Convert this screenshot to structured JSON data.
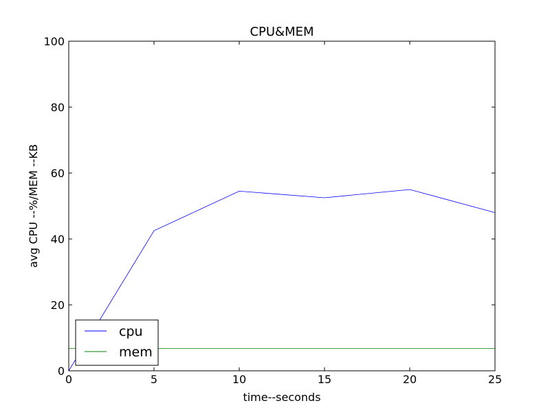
{
  "chart_data": {
    "type": "line",
    "title": "CPU&MEM",
    "xlabel": "time--seconds",
    "ylabel": "avg CPU --%/MEM --KB",
    "xlim": [
      0,
      25
    ],
    "ylim": [
      0,
      100
    ],
    "xticks": [
      0,
      5,
      10,
      15,
      20,
      25
    ],
    "yticks": [
      0,
      20,
      40,
      60,
      80,
      100
    ],
    "grid": false,
    "legend_position": "lower-left",
    "series": [
      {
        "name": "cpu",
        "color": "#0000ff",
        "points": [
          [
            0,
            0
          ],
          [
            5,
            42.5
          ],
          [
            10,
            54.5
          ],
          [
            15,
            52.5
          ],
          [
            20,
            55
          ],
          [
            25,
            48
          ]
        ]
      },
      {
        "name": "mem",
        "color": "#008000",
        "points": [
          [
            0,
            6.8
          ],
          [
            5,
            6.8
          ],
          [
            10,
            6.8
          ],
          [
            15,
            6.8
          ],
          [
            20,
            6.8
          ],
          [
            25,
            6.8
          ]
        ]
      }
    ]
  }
}
